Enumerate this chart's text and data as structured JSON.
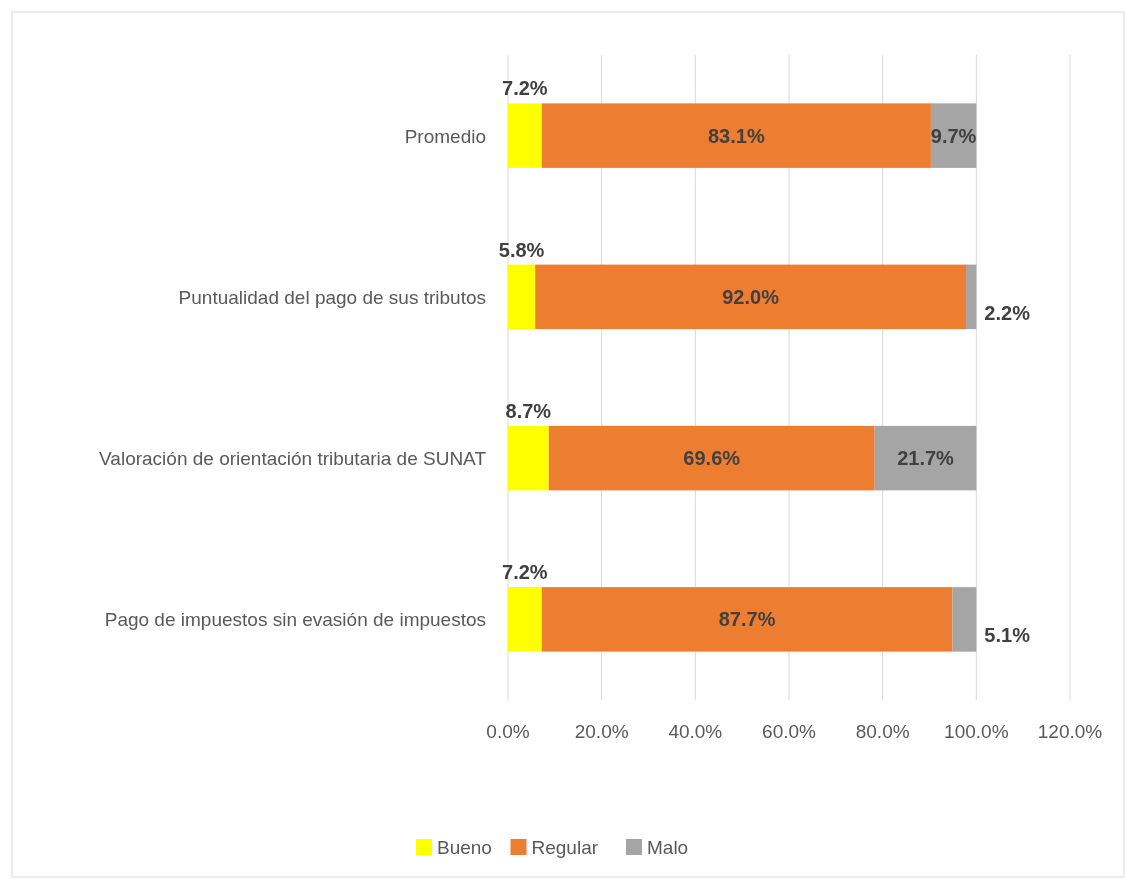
{
  "chart_data": {
    "type": "bar",
    "orientation": "horizontal",
    "stacked": true,
    "categories": [
      "Promedio",
      "Puntualidad del pago de sus tributos",
      "Valoración de orientación tributaria de SUNAT",
      "Pago de impuestos sin evasión de impuestos"
    ],
    "series": [
      {
        "name": "Bueno",
        "color": "#ffff00",
        "values": [
          7.2,
          5.8,
          8.7,
          7.2
        ],
        "value_labels": [
          "7.2%",
          "5.8%",
          "8.7%",
          "7.2%"
        ]
      },
      {
        "name": "Regular",
        "color": "#ed7d31",
        "values": [
          83.1,
          92.0,
          69.6,
          87.7
        ],
        "value_labels": [
          "83.1%",
          "92.0%",
          "69.6%",
          "87.7%"
        ]
      },
      {
        "name": "Malo",
        "color": "#a5a5a5",
        "values": [
          9.7,
          2.2,
          21.7,
          5.1
        ],
        "value_labels": [
          "9.7%",
          "2.2%",
          "21.7%",
          "5.1%"
        ]
      }
    ],
    "xlim": [
      0,
      120
    ],
    "xticks": [
      {
        "value": 0,
        "label": "0.0%"
      },
      {
        "value": 20,
        "label": "20.0%"
      },
      {
        "value": 40,
        "label": "40.0%"
      },
      {
        "value": 60,
        "label": "60.0%"
      },
      {
        "value": 80,
        "label": "80.0%"
      },
      {
        "value": 100,
        "label": "100.0%"
      },
      {
        "value": 120,
        "label": "120.0%"
      }
    ],
    "grid": "x",
    "legend": "bottom"
  }
}
